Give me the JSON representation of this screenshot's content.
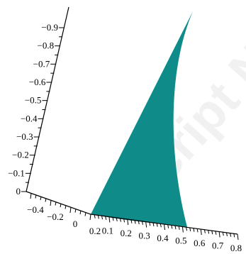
{
  "chart_data": {
    "type": "surface3d",
    "colors": {
      "surface": "#0F8C8A",
      "axes": "#000000"
    },
    "axes": {
      "vertical": {
        "range": [
          0,
          -0.9
        ],
        "ticks": [
          {
            "value": 0,
            "label": "0"
          },
          {
            "value": -0.1,
            "label": "−0.1"
          },
          {
            "value": -0.2,
            "label": "−0.2"
          },
          {
            "value": -0.3,
            "label": "−0.3"
          },
          {
            "value": -0.4,
            "label": "−0.4"
          },
          {
            "value": -0.5,
            "label": "−0.5"
          },
          {
            "value": -0.6,
            "label": "−0.6"
          },
          {
            "value": -0.7,
            "label": "−0.7"
          },
          {
            "value": -0.8,
            "label": "−0.8"
          },
          {
            "value": -0.9,
            "label": "−0.9"
          }
        ]
      },
      "left_axis": {
        "range": [
          -0.4,
          0.2
        ],
        "ticks": [
          {
            "value": -0.4,
            "label": "−0.4"
          },
          {
            "value": -0.2,
            "label": "−0.2"
          },
          {
            "value": 0,
            "label": "0"
          },
          {
            "value": 0.2,
            "label": "0.2"
          }
        ]
      },
      "right_axis": {
        "range": [
          0,
          0.8
        ],
        "ticks": [
          {
            "value": 0.1,
            "label": "0.1"
          },
          {
            "value": 0.2,
            "label": "0.2"
          },
          {
            "value": 0.3,
            "label": "0.3"
          },
          {
            "value": 0.4,
            "label": "0.4"
          },
          {
            "value": 0.5,
            "label": "0.5"
          },
          {
            "value": 0.6,
            "label": "0.6"
          },
          {
            "value": 0.7,
            "label": "0.7"
          },
          {
            "value": 0.8,
            "label": "0.8"
          }
        ]
      }
    }
  },
  "watermark": {
    "text": "Script Notes"
  }
}
